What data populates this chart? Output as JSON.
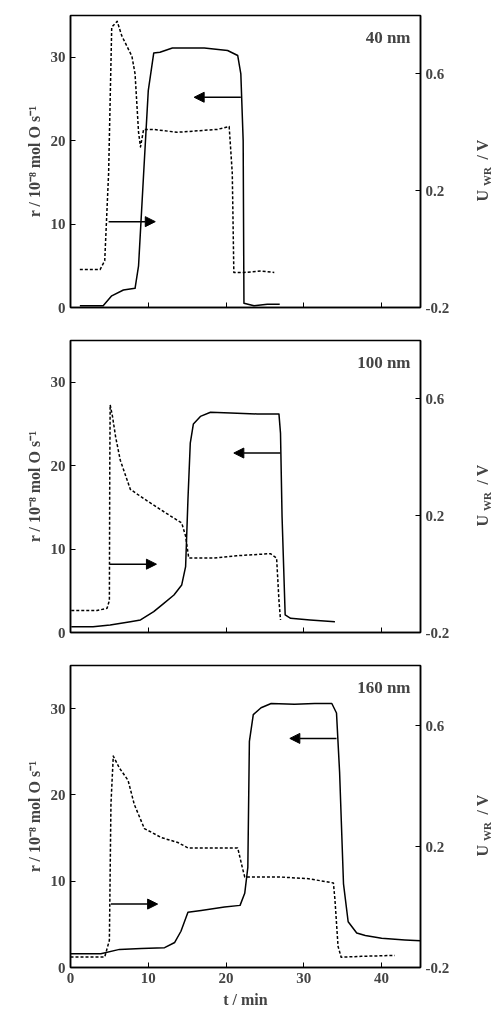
{
  "chart_data": [
    {
      "type": "line",
      "annotations": [
        "40 nm"
      ],
      "ylabel": "r / 10⁻⁸ mol O s⁻¹",
      "y2label": "U$_{WR}$ / V",
      "xlim": [
        0,
        45
      ],
      "xticks": [
        0,
        10,
        20,
        30,
        40
      ],
      "ylim": [
        0,
        35
      ],
      "yticks": [
        0,
        10,
        20,
        30
      ],
      "y2lim": [
        -0.2,
        0.8
      ],
      "y2ticks": [
        -0.2,
        0.2,
        0.6
      ],
      "tick_labels": "y",
      "grid": false,
      "marker": "none",
      "series": [
        {
          "color": "#000000",
          "line_style": "solid",
          "x": [
            1.2,
            4.2,
            5.3,
            6.8,
            8.3,
            8.75,
            9.4,
            10,
            10.7,
            11.5,
            13.1,
            17.2,
            20.2,
            21.5,
            21.9,
            22.2,
            22.3,
            23.6,
            25.3,
            26.9
          ],
          "values": [
            0.2,
            0.2,
            1.4,
            2.1,
            2.3,
            5,
            16,
            26,
            30.5,
            30.6,
            31.1,
            31.1,
            30.8,
            30.2,
            28,
            20,
            0.5,
            0.2,
            0.4,
            0.4
          ]
        },
        {
          "color": "#000000",
          "line_style": "dashed",
          "axis": "y2",
          "x": [
            1.2,
            3.8,
            4.4,
            4.9,
            5.3,
            6.0,
            6.6,
            7.9,
            8.3,
            8.75,
            9.0,
            9.4,
            10.7,
            13.7,
            18.9,
            20.4,
            20.8,
            21.0,
            22.3,
            24.5,
            26.2
          ],
          "values": [
            -0.07,
            -0.07,
            -0.04,
            0.26,
            0.76,
            0.78,
            0.73,
            0.66,
            0.6,
            0.4,
            0.35,
            0.41,
            0.41,
            0.4,
            0.41,
            0.42,
            0.26,
            -0.08,
            -0.08,
            -0.075,
            -0.08
          ]
        }
      ]
    },
    {
      "type": "line",
      "annotations": [
        "100 nm"
      ],
      "ylabel": "r / 10⁻⁸ mol O s⁻¹",
      "y2label": "U$_{WR}$ / V",
      "xlim": [
        0,
        45
      ],
      "xticks": [
        0,
        10,
        20,
        30,
        40
      ],
      "ylim": [
        0,
        35
      ],
      "yticks": [
        0,
        10,
        20,
        30
      ],
      "y2lim": [
        -0.2,
        0.8
      ],
      "y2ticks": [
        -0.2,
        0.2,
        0.6
      ],
      "tick_labels": "y",
      "grid": false,
      "marker": "none",
      "series": [
        {
          "color": "#000000",
          "line_style": "solid",
          "x": [
            0.1,
            2.9,
            5.1,
            7.7,
            9.0,
            10.7,
            12.0,
            13.3,
            14.3,
            14.8,
            15.1,
            15.4,
            15.8,
            16.7,
            18.0,
            20.6,
            24.0,
            26.8,
            27.0,
            27.2,
            27.6,
            28.3,
            30.8,
            34.0
          ],
          "values": [
            0.7,
            0.7,
            0.9,
            1.3,
            1.5,
            2.5,
            3.5,
            4.5,
            5.7,
            7.9,
            15.9,
            22.7,
            25.0,
            25.9,
            26.4,
            26.3,
            26.2,
            26.2,
            23.9,
            13.9,
            2.1,
            1.7,
            1.5,
            1.3
          ]
        },
        {
          "color": "#000000",
          "line_style": "dashed",
          "axis": "y2",
          "x": [
            0.1,
            3.4,
            4.7,
            5.0,
            5.05,
            5.1,
            5.4,
            5.8,
            6.4,
            7.7,
            9.9,
            12.8,
            14.3,
            14.8,
            15.2,
            18.4,
            21.4,
            25.7,
            26.5,
            26.8,
            27.0
          ],
          "values": [
            -0.125,
            -0.125,
            -0.117,
            -0.09,
            0.37,
            0.58,
            0.54,
            0.47,
            0.39,
            0.29,
            0.25,
            0.2,
            0.175,
            0.13,
            0.055,
            0.055,
            0.063,
            0.07,
            0.055,
            -0.09,
            -0.157
          ]
        }
      ]
    },
    {
      "type": "line",
      "annotations": [
        "160 nm"
      ],
      "xlabel": "t / min",
      "ylabel": "r / 10⁻⁸ mol O s⁻¹",
      "y2label": "U$_{WR}$ / V",
      "xlim": [
        0,
        45
      ],
      "xticks": [
        0,
        10,
        20,
        30,
        40
      ],
      "ylim": [
        0,
        35
      ],
      "yticks": [
        0,
        10,
        20,
        30
      ],
      "y2lim": [
        -0.2,
        0.8
      ],
      "y2ticks": [
        -0.2,
        0.2,
        0.6
      ],
      "grid": false,
      "marker": "none",
      "series": [
        {
          "color": "#000000",
          "line_style": "solid",
          "x": [
            0,
            3.9,
            6.3,
            9.1,
            12.1,
            13.4,
            14.2,
            15.1,
            16.8,
            19.8,
            21.8,
            22.4,
            22.8,
            23.0,
            23.5,
            24.5,
            25.8,
            28.8,
            31.4,
            33.6,
            34.2,
            34.6,
            35.1,
            35.7,
            36.8,
            37.9,
            40,
            43,
            45
          ],
          "values": [
            1.6,
            1.6,
            2.1,
            2.2,
            2.3,
            2.9,
            4.2,
            6.4,
            6.6,
            7.0,
            7.2,
            8.6,
            11.6,
            26.2,
            29.3,
            30.1,
            30.6,
            30.5,
            30.6,
            30.6,
            29.5,
            22.6,
            9.7,
            5.3,
            4.0,
            3.7,
            3.4,
            3.2,
            3.1
          ]
        },
        {
          "color": "#000000",
          "line_style": "dashed",
          "axis": "y2",
          "x": [
            0,
            4.4,
            5.0,
            5.2,
            5.5,
            6.3,
            7.4,
            8.2,
            9.5,
            11.7,
            13.8,
            15.1,
            21.5,
            22.1,
            22.4,
            23.0,
            26.7,
            30.6,
            33.8,
            34.0,
            34.4,
            34.8,
            37.4,
            41.7
          ],
          "values": [
            -0.165,
            -0.165,
            -0.11,
            0.34,
            0.5,
            0.46,
            0.42,
            0.34,
            0.26,
            0.23,
            0.214,
            0.196,
            0.196,
            0.13,
            0.1,
            0.1,
            0.1,
            0.094,
            0.08,
            0.025,
            -0.13,
            -0.166,
            -0.163,
            -0.16
          ]
        }
      ]
    }
  ]
}
